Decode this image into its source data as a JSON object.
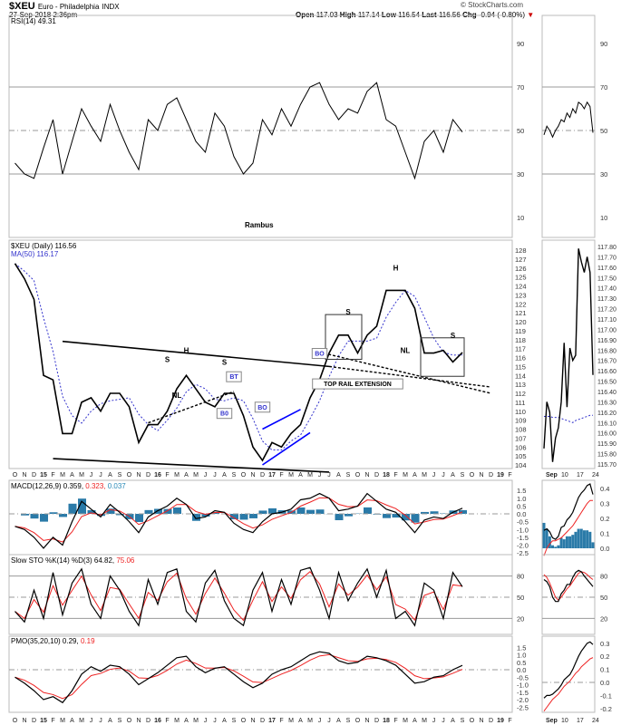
{
  "header": {
    "symbol": "$XEU",
    "name": "Euro - Philadelphia",
    "exchange": "INDX",
    "datetime": "27-Sep-2018 2:36pm",
    "credit": "© StockCharts.com",
    "open_label": "Open",
    "open": "117.03",
    "high_label": "High",
    "high": "117.14",
    "low_label": "Low",
    "low": "116.54",
    "last_label": "Last",
    "last": "116.56",
    "chg_label": "Chg",
    "chg": "-0.94 (-0.80%)",
    "down_arrow": "▼"
  },
  "chart_data": {
    "type": "line",
    "colors": {
      "price": "#000000",
      "ma": "#3333cc",
      "signal": "#ff2222",
      "histogram": "#2a7aa8",
      "blue_lines": "#0000ff"
    },
    "months": [
      "2014-10",
      "2014-11",
      "2014-12",
      "2015-01",
      "2015-02",
      "2015-03",
      "2015-04",
      "2015-05",
      "2015-06",
      "2015-07",
      "2015-08",
      "2015-09",
      "2015-10",
      "2015-11",
      "2015-12",
      "2016-01",
      "2016-02",
      "2016-03",
      "2016-04",
      "2016-05",
      "2016-06",
      "2016-07",
      "2016-08",
      "2016-09",
      "2016-10",
      "2016-11",
      "2016-12",
      "2017-01",
      "2017-02",
      "2017-03",
      "2017-04",
      "2017-05",
      "2017-06",
      "2017-07",
      "2017-08",
      "2017-09",
      "2017-10",
      "2017-11",
      "2017-12",
      "2018-01",
      "2018-02",
      "2018-03",
      "2018-04",
      "2018-05",
      "2018-06",
      "2018-07",
      "2018-08",
      "2018-09"
    ],
    "x_tick_labels": [
      "O",
      "N",
      "D",
      "15",
      "F",
      "M",
      "A",
      "M",
      "J",
      "J",
      "A",
      "S",
      "O",
      "N",
      "D",
      "16",
      "F",
      "M",
      "A",
      "M",
      "J",
      "J",
      "A",
      "S",
      "O",
      "N",
      "D",
      "17",
      "F",
      "M",
      "A",
      "M",
      "J",
      "J",
      "A",
      "S",
      "O",
      "N",
      "D",
      "18",
      "F",
      "M",
      "A",
      "M",
      "J",
      "J",
      "A",
      "S",
      "O",
      "N",
      "D",
      "19",
      "F"
    ],
    "rsi": {
      "label": "RSI(14) 49.31",
      "ticks": [
        "90",
        "70",
        "50",
        "30",
        "10"
      ],
      "ylim": [
        0,
        100
      ],
      "footer": "Rambus",
      "values": [
        35,
        30,
        28,
        42,
        55,
        30,
        45,
        60,
        52,
        45,
        62,
        50,
        40,
        32,
        55,
        50,
        62,
        65,
        55,
        45,
        40,
        58,
        52,
        38,
        30,
        35,
        55,
        48,
        60,
        52,
        62,
        70,
        72,
        62,
        55,
        60,
        58,
        68,
        72,
        55,
        52,
        40,
        28,
        45,
        50,
        40,
        55,
        49.31
      ]
    },
    "price": {
      "label": "$XEU (Daily) 116.56",
      "ma_label": "MA(50) 116.17",
      "ylim": [
        103.5,
        128.5
      ],
      "ticks": [
        "128",
        "127",
        "126",
        "125",
        "124",
        "123",
        "122",
        "121",
        "120",
        "119",
        "118",
        "117",
        "116",
        "115",
        "114",
        "113",
        "112",
        "111",
        "110",
        "109",
        "108",
        "107",
        "106",
        "105",
        "104"
      ],
      "values": [
        126.5,
        124.8,
        122.5,
        114,
        113.5,
        107.5,
        107.5,
        111,
        111.5,
        110,
        112,
        112,
        110.5,
        106.5,
        108.5,
        108.5,
        110,
        112.5,
        114,
        112.5,
        111,
        110.5,
        112,
        112,
        109.5,
        106,
        104.5,
        106.5,
        106,
        107.5,
        108.5,
        111.5,
        113.5,
        116.5,
        118.5,
        118.5,
        116.5,
        118.5,
        119.5,
        123.5,
        123.5,
        123.5,
        121.5,
        116.5,
        116.5,
        116.8,
        115.5,
        116.56
      ]
    },
    "annotations": {
      "labels": [
        {
          "text": "H",
          "date": "2016-04",
          "price": 116.5
        },
        {
          "text": "S",
          "date": "2016-02",
          "price": 115.5
        },
        {
          "text": "S",
          "date": "2016-08",
          "price": 115.2
        },
        {
          "text": "NL",
          "date": "2016-03",
          "price": 111.5
        },
        {
          "text": "S",
          "date": "2017-09",
          "price": 120.8
        },
        {
          "text": "H",
          "date": "2018-02",
          "price": 125.7
        },
        {
          "text": "NL",
          "date": "2018-03",
          "price": 116.5
        },
        {
          "text": "S",
          "date": "2018-08",
          "price": 118.2
        }
      ],
      "callouts": [
        {
          "text": "BO",
          "date": "2017-06",
          "price": 116.2
        },
        {
          "text": "BT",
          "date": "2016-09",
          "price": 113.6
        },
        {
          "text": "B0",
          "date": "2016-08",
          "price": 109.5
        },
        {
          "text": "BO",
          "date": "2016-12",
          "price": 110.2
        },
        {
          "text": "TOP RAIL EXTENSION",
          "date": "2017-10",
          "price": 112.8
        }
      ]
    },
    "macd": {
      "label": "MACD(12,26,9) 0.359,",
      "signal_label": " 0.323,",
      "hist_label": " 0.037",
      "ylim": [
        -2.6,
        1.6
      ],
      "ticks": [
        "1.5",
        "1.0",
        "0.5",
        "0.0",
        "-0.5",
        "-1.0",
        "-1.5",
        "-2.0",
        "-2.5"
      ],
      "values": [
        -0.8,
        -1.0,
        -1.5,
        -2.2,
        -1.5,
        -2.0,
        -0.5,
        0.8,
        0.3,
        -0.2,
        0.6,
        0.1,
        -0.5,
        -1.2,
        -0.2,
        0.2,
        0.5,
        1.0,
        0.6,
        -0.3,
        -0.2,
        0.2,
        0.1,
        -0.6,
        -1.0,
        -1.2,
        -0.5,
        0.0,
        0.1,
        0.3,
        0.9,
        1.0,
        1.3,
        1.0,
        0.2,
        0.3,
        0.5,
        1.3,
        0.8,
        0.3,
        0.1,
        -0.5,
        -1.2,
        -0.4,
        -0.2,
        -0.3,
        0.1,
        0.359
      ]
    },
    "sto": {
      "label": "Slow STO %K(14) %D(3) 64.82,",
      "d_label": " 75.06",
      "ylim": [
        0,
        100
      ],
      "ticks": [
        "80",
        "50",
        "20"
      ],
      "values": [
        30,
        15,
        60,
        20,
        85,
        25,
        70,
        90,
        40,
        20,
        80,
        60,
        30,
        10,
        75,
        40,
        85,
        90,
        30,
        15,
        70,
        88,
        45,
        20,
        10,
        60,
        85,
        30,
        75,
        40,
        88,
        92,
        60,
        20,
        85,
        45,
        70,
        90,
        50,
        88,
        20,
        30,
        10,
        70,
        60,
        20,
        85,
        64.82
      ]
    },
    "pmo": {
      "label": "PMO(35,20,10) 0.29,",
      "signal_label": " 0.19",
      "ylim": [
        -2.6,
        1.6
      ],
      "ticks": [
        "1.5",
        "1.0",
        "0.5",
        "0.0",
        "-0.5",
        "-1.0",
        "-1.5",
        "-2.0",
        "-2.5"
      ],
      "values": [
        -0.5,
        -0.9,
        -1.4,
        -2.0,
        -1.8,
        -2.2,
        -1.4,
        -0.3,
        0.2,
        -0.1,
        0.3,
        0.2,
        -0.3,
        -1.0,
        -0.6,
        -0.2,
        0.3,
        0.8,
        0.9,
        0.2,
        -0.2,
        0.1,
        0.2,
        -0.3,
        -0.8,
        -1.2,
        -0.9,
        -0.3,
        0.0,
        0.2,
        0.6,
        1.0,
        1.2,
        1.1,
        0.6,
        0.4,
        0.5,
        0.9,
        0.8,
        0.6,
        0.3,
        -0.3,
        -0.9,
        -0.8,
        -0.5,
        -0.4,
        0.0,
        0.29
      ]
    },
    "zoom_panel": {
      "x_tick_labels": [
        "Sep",
        "10",
        "17",
        "24"
      ],
      "price_ticks": [
        "117.80",
        "117.70",
        "117.60",
        "117.50",
        "117.40",
        "117.30",
        "117.20",
        "117.10",
        "117.00",
        "116.90",
        "116.80",
        "116.70",
        "116.60",
        "116.50",
        "116.40",
        "116.30",
        "116.20",
        "116.10",
        "116.00",
        "115.90",
        "115.80",
        "115.70"
      ],
      "price": [
        115.85,
        116.3,
        116.2,
        115.72,
        115.95,
        116.05,
        116.3,
        116.87,
        116.25,
        116.82,
        116.7,
        116.75,
        117.78,
        117.65,
        117.55,
        117.7,
        117.55,
        116.56
      ],
      "ma": [
        116.16,
        116.16,
        116.16,
        116.15,
        116.15,
        116.15,
        116.14,
        116.13,
        116.12,
        116.11,
        116.1,
        116.12,
        116.13,
        116.14,
        116.15,
        116.16,
        116.17,
        116.17
      ],
      "rsi": [
        48,
        52,
        50,
        47,
        50,
        52,
        55,
        54,
        58,
        56,
        60,
        58,
        63,
        62,
        60,
        63,
        61,
        49
      ],
      "rsi_ticks": [
        "90",
        "70",
        "50",
        "30",
        "10"
      ],
      "macd": [
        0.12,
        0.13,
        0.11,
        0.07,
        0.06,
        0.08,
        0.14,
        0.15,
        0.19,
        0.21,
        0.24,
        0.29,
        0.34,
        0.37,
        0.39,
        0.42,
        0.43,
        0.36
      ],
      "macd_signal": [
        -0.05,
        0.0,
        0.03,
        0.05,
        0.05,
        0.06,
        0.07,
        0.09,
        0.11,
        0.13,
        0.15,
        0.18,
        0.21,
        0.24,
        0.27,
        0.3,
        0.32,
        0.32
      ],
      "macd_ticks": [
        "0.4",
        "0.3",
        "0.2",
        "0.1",
        "0.0"
      ],
      "sto_k": [
        75,
        72,
        65,
        50,
        44,
        44,
        55,
        60,
        68,
        68,
        78,
        85,
        88,
        86,
        80,
        75,
        70,
        65
      ],
      "sto_d": [
        82,
        78,
        70,
        60,
        50,
        46,
        50,
        56,
        62,
        66,
        72,
        78,
        84,
        86,
        85,
        82,
        78,
        75
      ],
      "sto_ticks": [
        "80",
        "50",
        "20"
      ],
      "pmo": [
        -0.12,
        -0.1,
        -0.1,
        -0.09,
        -0.07,
        -0.05,
        -0.02,
        0.02,
        0.04,
        0.06,
        0.1,
        0.15,
        0.2,
        0.24,
        0.27,
        0.3,
        0.31,
        0.29
      ],
      "pmo_signal": [
        -0.22,
        -0.19,
        -0.16,
        -0.13,
        -0.11,
        -0.09,
        -0.06,
        -0.03,
        -0.01,
        0.01,
        0.04,
        0.07,
        0.09,
        0.12,
        0.14,
        0.16,
        0.18,
        0.19
      ],
      "pmo_ticks": [
        "0.3",
        "0.2",
        "0.1",
        "0.0",
        "-0.1",
        "-0.2"
      ]
    }
  }
}
